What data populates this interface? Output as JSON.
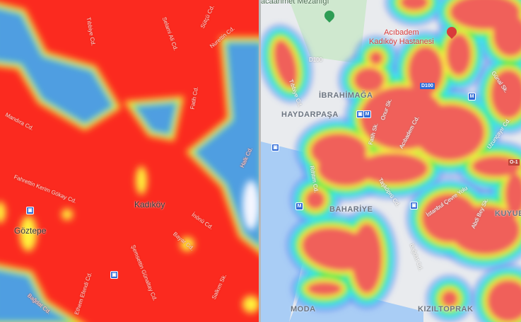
{
  "left_map": {
    "heat_style": "dense",
    "places": [
      "Kadıköy",
      "Göztepe"
    ],
    "streets": [
      "Mandıra Cd.",
      "Fahrettin Kerim Gökay Cd.",
      "Bağdat Cd.",
      "Fatih Cd.",
      "Halk Cd.",
      "İnönü Cd.",
      "Bayar Cd.",
      "Şemsettin Günaltay Cd.",
      "Ethem Efendi Cd.",
      "Tıbbiye Cd.",
      "Selami Ali Cd.",
      "Sütçü Cd.",
      "Nurettin Cd.",
      "Salkım Sk."
    ],
    "transit_icons": [
      "train-icon",
      "train-icon"
    ]
  },
  "right_map": {
    "heat_style": "sparse",
    "districts": [
      "İBRAHİMAĞA",
      "HAYDARPAŞA",
      "BAHARİYE",
      "MODA",
      "KIZILTOPRAK",
      "KUYUB"
    ],
    "poi": {
      "hospital_line1": "Acıbadem",
      "hospital_line2": "Kadıköy Hastanesi",
      "cemetery": "acaahmet Mezarlığı"
    },
    "highway_shields": [
      "D100",
      "D100",
      "O-1"
    ],
    "streets": [
      "Tıbbiye Cd.",
      "Fatih Sk.",
      "Onur Sk.",
      "Acıbadem Cd.",
      "Günal Sk.",
      "Uzunçayır Cd.",
      "Rıhtım Cd.",
      "Taşköprü Cd.",
      "İstanbul Çevre Yolu",
      "Abdi Bey Sk.",
      "Bağdat Cd."
    ],
    "metro_label": "M"
  },
  "colors": {
    "heat_red": "#fb2a1f",
    "heat_yellow": "#fff23a",
    "heat_green": "#2ee64a",
    "heat_cyan": "#3ff0f0",
    "heat_blue": "#5a7ef0",
    "map_bg": "#e9ebee",
    "water": "#a9cdf5",
    "park": "#cfe8cf",
    "transit": "#2f6ad6",
    "hospital": "#d93b3b"
  }
}
